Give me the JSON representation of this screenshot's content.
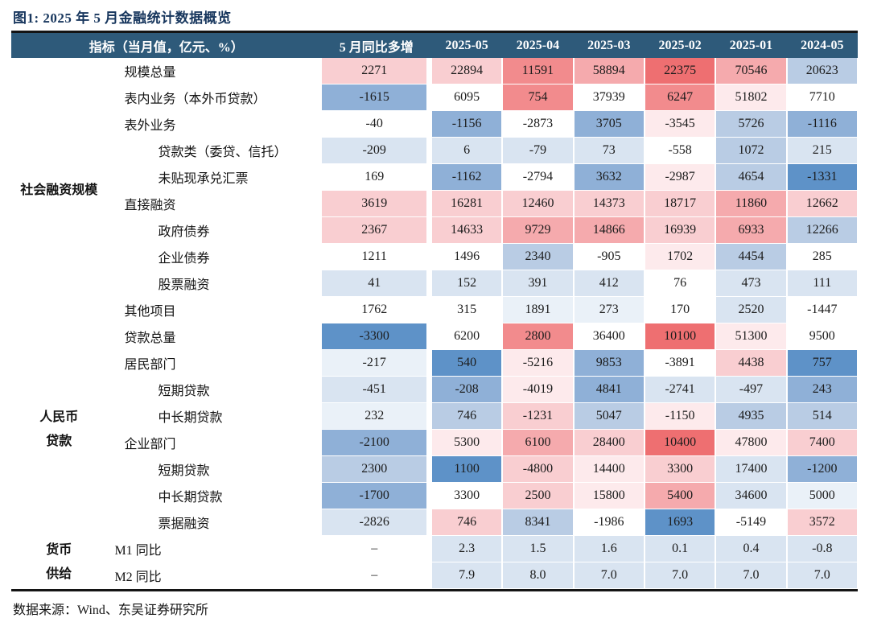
{
  "figure": {
    "title": "图1:  2025 年 5 月金融统计数据概览",
    "source": "数据来源：Wind、东吴证券研究所"
  },
  "palette": {
    "R4": "#ee6f71",
    "R3": "#f28b8d",
    "R2": "#f5aaad",
    "R1": "#f9ced1",
    "R0": "#fdeaec",
    "W": "#ffffff",
    "B0": "#eaf1f8",
    "B1": "#d9e4f1",
    "B2": "#b9cce4",
    "B3": "#8fb0d7",
    "B4": "#5e92c8",
    "header_bg": "#2e5a7a",
    "title_color": "#17365d"
  },
  "chart_data": {
    "type": "table",
    "title": "图1:  2025 年 5 月金融统计数据概览",
    "header_indicator": "指标（当月值，亿元、%）",
    "columns": [
      "5 月同比多增",
      "2025-05",
      "2025-04",
      "2025-03",
      "2025-02",
      "2025-01",
      "2024-05"
    ],
    "source": "数据来源：Wind、东吴证券研究所",
    "groups": [
      {
        "label_lines": [
          "社会融资规模"
        ],
        "rows": [
          {
            "label": "规模总量",
            "indent": 1,
            "values": [
              [
                "2271",
                "R1"
              ],
              [
                "22894",
                "R1"
              ],
              [
                "11591",
                "R3"
              ],
              [
                "58894",
                "R2"
              ],
              [
                "22375",
                "R4"
              ],
              [
                "70546",
                "R2"
              ],
              [
                "20623",
                "B2"
              ]
            ]
          },
          {
            "label": "表内业务（本外币贷款）",
            "indent": 1,
            "values": [
              [
                "-1615",
                "B3"
              ],
              [
                "6095",
                "W"
              ],
              [
                "754",
                "R3"
              ],
              [
                "37939",
                "W"
              ],
              [
                "6247",
                "R3"
              ],
              [
                "51802",
                "R0"
              ],
              [
                "7710",
                "W"
              ]
            ]
          },
          {
            "label": "表外业务",
            "indent": 1,
            "values": [
              [
                "-40",
                "W"
              ],
              [
                "-1156",
                "B3"
              ],
              [
                "-2873",
                "W"
              ],
              [
                "3705",
                "B3"
              ],
              [
                "-3545",
                "R0"
              ],
              [
                "5726",
                "B2"
              ],
              [
                "-1116",
                "B3"
              ]
            ]
          },
          {
            "label": "贷款类（委贷、信托）",
            "indent": 2,
            "values": [
              [
                "-209",
                "B1"
              ],
              [
                "6",
                "B1"
              ],
              [
                "-79",
                "B1"
              ],
              [
                "73",
                "B1"
              ],
              [
                "-558",
                "W"
              ],
              [
                "1072",
                "B2"
              ],
              [
                "215",
                "B1"
              ]
            ]
          },
          {
            "label": "未贴现承兑汇票",
            "indent": 2,
            "values": [
              [
                "169",
                "W"
              ],
              [
                "-1162",
                "B3"
              ],
              [
                "-2794",
                "W"
              ],
              [
                "3632",
                "B3"
              ],
              [
                "-2987",
                "R0"
              ],
              [
                "4654",
                "B2"
              ],
              [
                "-1331",
                "B4"
              ]
            ]
          },
          {
            "label": "直接融资",
            "indent": 1,
            "values": [
              [
                "3619",
                "R1"
              ],
              [
                "16281",
                "R1"
              ],
              [
                "12460",
                "R1"
              ],
              [
                "14373",
                "R1"
              ],
              [
                "18717",
                "R1"
              ],
              [
                "11860",
                "R2"
              ],
              [
                "12662",
                "R1"
              ]
            ]
          },
          {
            "label": "政府债券",
            "indent": 2,
            "values": [
              [
                "2367",
                "R1"
              ],
              [
                "14633",
                "R1"
              ],
              [
                "9729",
                "R2"
              ],
              [
                "14866",
                "R2"
              ],
              [
                "16939",
                "R1"
              ],
              [
                "6933",
                "R2"
              ],
              [
                "12266",
                "B2"
              ]
            ]
          },
          {
            "label": "企业债券",
            "indent": 2,
            "values": [
              [
                "1211",
                "W"
              ],
              [
                "1496",
                "W"
              ],
              [
                "2340",
                "B2"
              ],
              [
                "-905",
                "W"
              ],
              [
                "1702",
                "R0"
              ],
              [
                "4454",
                "B2"
              ],
              [
                "285",
                "W"
              ]
            ]
          },
          {
            "label": "股票融资",
            "indent": 2,
            "values": [
              [
                "41",
                "B1"
              ],
              [
                "152",
                "B1"
              ],
              [
                "391",
                "B1"
              ],
              [
                "412",
                "B1"
              ],
              [
                "76",
                "W"
              ],
              [
                "473",
                "B1"
              ],
              [
                "111",
                "B1"
              ]
            ]
          },
          {
            "label": "其他项目",
            "indent": 1,
            "values": [
              [
                "1762",
                "W"
              ],
              [
                "315",
                "W"
              ],
              [
                "1891",
                "B0"
              ],
              [
                "273",
                "B0"
              ],
              [
                "170",
                "W"
              ],
              [
                "2520",
                "B1"
              ],
              [
                "-1447",
                "W"
              ]
            ]
          }
        ]
      },
      {
        "label_lines": [
          "人民币",
          "贷款"
        ],
        "rows": [
          {
            "label": "贷款总量",
            "indent": 1,
            "values": [
              [
                "-3300",
                "B4"
              ],
              [
                "6200",
                "W"
              ],
              [
                "2800",
                "R3"
              ],
              [
                "36400",
                "W"
              ],
              [
                "10100",
                "R4"
              ],
              [
                "51300",
                "R0"
              ],
              [
                "9500",
                "W"
              ]
            ]
          },
          {
            "label": "居民部门",
            "indent": 1,
            "values": [
              [
                "-217",
                "B0"
              ],
              [
                "540",
                "B4"
              ],
              [
                "-5216",
                "R0"
              ],
              [
                "9853",
                "B3"
              ],
              [
                "-3891",
                "W"
              ],
              [
                "4438",
                "R1"
              ],
              [
                "757",
                "B4"
              ]
            ]
          },
          {
            "label": "短期贷款",
            "indent": 2,
            "values": [
              [
                "-451",
                "B1"
              ],
              [
                "-208",
                "B3"
              ],
              [
                "-4019",
                "R0"
              ],
              [
                "4841",
                "B3"
              ],
              [
                "-2741",
                "B1"
              ],
              [
                "-497",
                "B1"
              ],
              [
                "243",
                "B3"
              ]
            ]
          },
          {
            "label": "中长期贷款",
            "indent": 2,
            "values": [
              [
                "232",
                "B0"
              ],
              [
                "746",
                "B2"
              ],
              [
                "-1231",
                "R1"
              ],
              [
                "5047",
                "B2"
              ],
              [
                "-1150",
                "R0"
              ],
              [
                "4935",
                "B2"
              ],
              [
                "514",
                "B2"
              ]
            ]
          },
          {
            "label": "企业部门",
            "indent": 1,
            "values": [
              [
                "-2100",
                "B3"
              ],
              [
                "5300",
                "R0"
              ],
              [
                "6100",
                "R2"
              ],
              [
                "28400",
                "R1"
              ],
              [
                "10400",
                "R4"
              ],
              [
                "47800",
                "R0"
              ],
              [
                "7400",
                "R1"
              ]
            ]
          },
          {
            "label": "短期贷款",
            "indent": 2,
            "values": [
              [
                "2300",
                "B2"
              ],
              [
                "1100",
                "B4"
              ],
              [
                "-4800",
                "R1"
              ],
              [
                "14400",
                "R0"
              ],
              [
                "3300",
                "R1"
              ],
              [
                "17400",
                "B1"
              ],
              [
                "-1200",
                "B3"
              ]
            ]
          },
          {
            "label": "中长期贷款",
            "indent": 2,
            "values": [
              [
                "-1700",
                "B3"
              ],
              [
                "3300",
                "W"
              ],
              [
                "2500",
                "R1"
              ],
              [
                "15800",
                "R0"
              ],
              [
                "5400",
                "R2"
              ],
              [
                "34600",
                "B1"
              ],
              [
                "5000",
                "B0"
              ]
            ]
          },
          {
            "label": "票据融资",
            "indent": 2,
            "values": [
              [
                "-2826",
                "B1"
              ],
              [
                "746",
                "R1"
              ],
              [
                "8341",
                "B2"
              ],
              [
                "-1986",
                "W"
              ],
              [
                "1693",
                "B4"
              ],
              [
                "-5149",
                "W"
              ],
              [
                "3572",
                "R1"
              ]
            ]
          }
        ]
      },
      {
        "label_lines": [
          "货币",
          "供给"
        ],
        "rows": [
          {
            "label": "M1 同比",
            "indent": 0,
            "values": [
              [
                "–",
                "W"
              ],
              [
                "2.3",
                "B1"
              ],
              [
                "1.5",
                "B1"
              ],
              [
                "1.6",
                "B1"
              ],
              [
                "0.1",
                "B1"
              ],
              [
                "0.4",
                "B1"
              ],
              [
                "-0.8",
                "B1"
              ]
            ]
          },
          {
            "label": "M2 同比",
            "indent": 0,
            "values": [
              [
                "–",
                "W"
              ],
              [
                "7.9",
                "B1"
              ],
              [
                "8.0",
                "B1"
              ],
              [
                "7.0",
                "B1"
              ],
              [
                "7.0",
                "B1"
              ],
              [
                "7.0",
                "B1"
              ],
              [
                "7.0",
                "B1"
              ]
            ]
          }
        ]
      }
    ]
  }
}
